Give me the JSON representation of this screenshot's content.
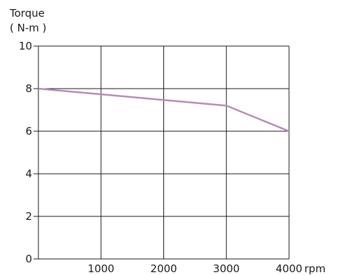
{
  "chart_data": {
    "type": "line",
    "ylabel": "Torque",
    "yunit": "( N-m )",
    "xunit": "rpm",
    "xlim": [
      0,
      4000
    ],
    "ylim": [
      0,
      10
    ],
    "x_ticks": [
      0,
      1000,
      2000,
      3000,
      4000
    ],
    "x_tick_labels": [
      "",
      "1000",
      "2000",
      "3000",
      "4000"
    ],
    "y_ticks": [
      0,
      2,
      4,
      6,
      8,
      10
    ],
    "y_tick_labels": [
      "0",
      "2",
      "4",
      "6",
      "8",
      "10"
    ],
    "grid": true,
    "series": [
      {
        "color": "#b58cb6",
        "x": [
          0,
          3000,
          4000
        ],
        "y": [
          8.0,
          7.2,
          6.0
        ]
      }
    ]
  }
}
